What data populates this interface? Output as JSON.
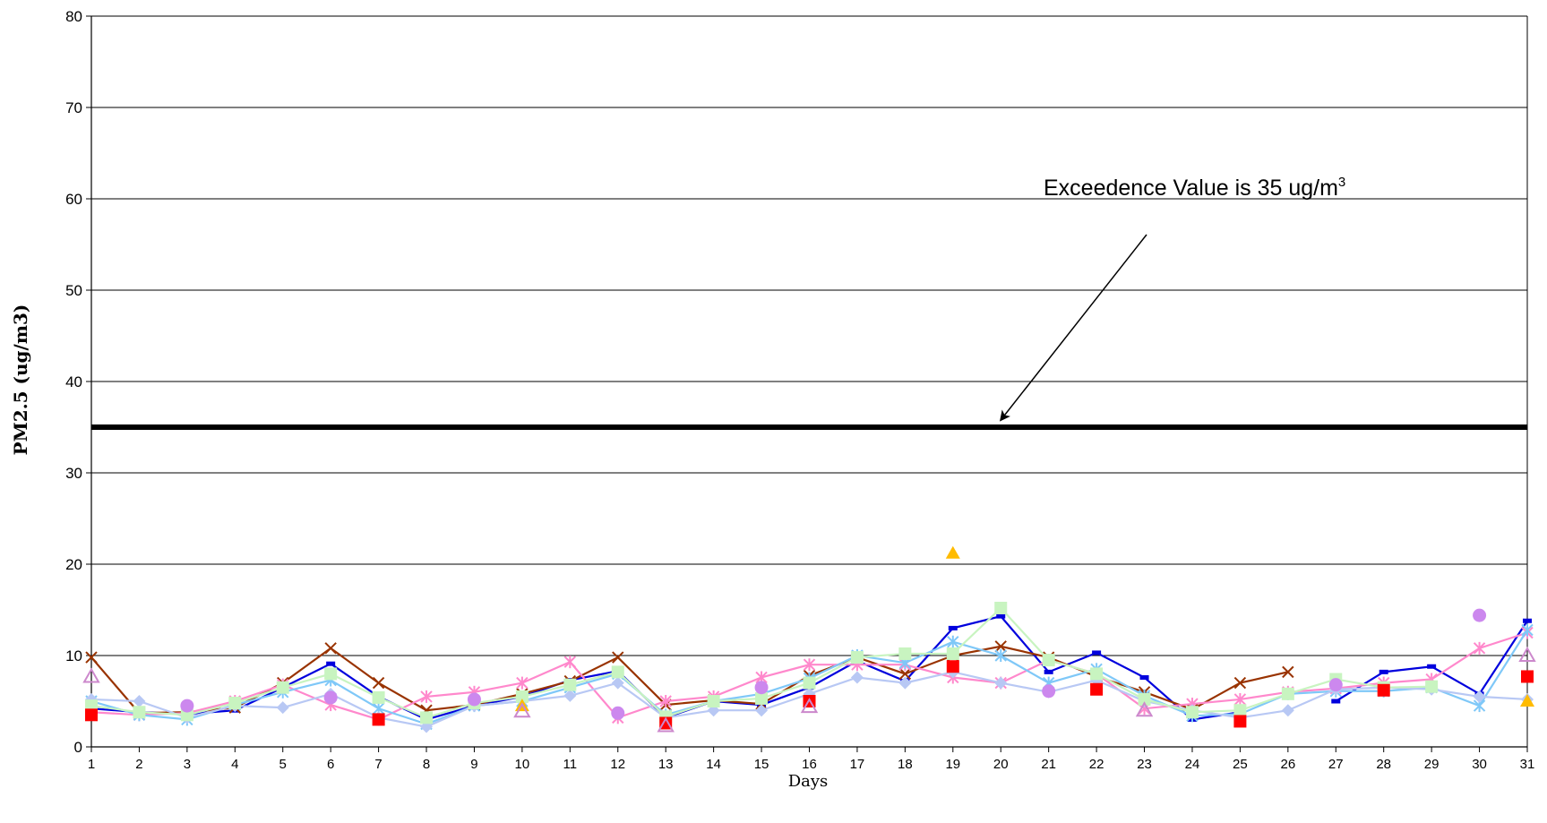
{
  "chart_data": {
    "type": "line",
    "title": "",
    "xlabel": "Days",
    "ylabel": "PM2.5 (ug/m3)",
    "xlim": [
      1,
      31
    ],
    "ylim": [
      0,
      80
    ],
    "yticks": [
      0,
      10,
      20,
      30,
      40,
      50,
      60,
      70,
      80
    ],
    "x": [
      1,
      2,
      3,
      4,
      5,
      6,
      7,
      8,
      9,
      10,
      11,
      12,
      13,
      14,
      15,
      16,
      17,
      18,
      19,
      20,
      21,
      22,
      23,
      24,
      25,
      26,
      27,
      28,
      29,
      30,
      31
    ],
    "grid": true,
    "legend": "none",
    "threshold": {
      "value": 35,
      "color": "#000000"
    },
    "annotation": {
      "text": "Exceedence Value is 35 ug/m",
      "superscript": "3",
      "points_to_x": 20,
      "points_to_y": 35
    },
    "series": [
      {
        "color": "#0000dd",
        "marker": "dash",
        "values": [
          4.2,
          3.8,
          3.6,
          4.0,
          6.5,
          9.1,
          5.5,
          3.0,
          4.5,
          5.5,
          7.3,
          8.3,
          3.2,
          5.0,
          4.6,
          6.5,
          9.4,
          7.2,
          13.0,
          14.3,
          8.2,
          10.3,
          7.6,
          3.0,
          3.8,
          null,
          5.0,
          8.2,
          8.8,
          5.8,
          13.8
        ]
      },
      {
        "color": "#993300",
        "marker": "x",
        "values": [
          9.8,
          3.7,
          3.8,
          4.3,
          7.0,
          10.8,
          7.0,
          4.0,
          4.6,
          5.8,
          7.2,
          9.8,
          4.6,
          5.1,
          4.7,
          7.8,
          9.8,
          8.0,
          10.0,
          11.0,
          9.8,
          7.7,
          6.0,
          4.1,
          7.0,
          8.2,
          null,
          null,
          null,
          null,
          null
        ]
      },
      {
        "color": "#ff88cc",
        "marker": "star",
        "values": [
          3.8,
          3.5,
          3.7,
          5.0,
          6.8,
          4.6,
          3.0,
          5.5,
          6.0,
          7.0,
          9.3,
          3.2,
          5.0,
          5.5,
          7.6,
          9.0,
          9.0,
          9.0,
          7.6,
          7.0,
          9.5,
          8.0,
          4.2,
          4.7,
          5.2,
          6.0,
          6.4,
          7.0,
          7.4,
          10.8,
          12.5
        ]
      },
      {
        "color": "#7fc8f8",
        "marker": "star",
        "values": [
          5.0,
          3.5,
          3.0,
          4.6,
          6.0,
          7.3,
          4.2,
          2.5,
          4.5,
          5.0,
          6.5,
          8.0,
          3.5,
          5.0,
          5.8,
          7.5,
          10.0,
          9.2,
          11.5,
          10.0,
          7.0,
          8.5,
          5.6,
          3.4,
          3.6,
          5.8,
          6.1,
          6.1,
          6.5,
          4.5,
          12.8
        ]
      },
      {
        "color": "#b8c8f4",
        "marker": "diamond",
        "values": [
          5.2,
          5.0,
          3.2,
          4.5,
          4.3,
          5.8,
          3.2,
          2.2,
          4.5,
          5.0,
          5.6,
          7.0,
          3.2,
          4.0,
          4.0,
          5.8,
          7.6,
          7.0,
          8.2,
          7.0,
          6.0,
          7.3,
          5.0,
          4.0,
          3.2,
          4.0,
          6.3,
          6.5,
          6.3,
          5.5,
          5.2
        ]
      },
      {
        "color": "#c8f4c0",
        "marker": "square",
        "values": [
          4.5,
          3.8,
          3.5,
          4.8,
          6.5,
          8.0,
          5.4,
          3.2,
          4.8,
          5.5,
          6.8,
          8.2,
          3.3,
          5.0,
          5.3,
          7.0,
          9.8,
          10.2,
          10.2,
          15.2,
          9.5,
          8.0,
          5.2,
          3.8,
          4.0,
          5.8,
          7.4,
          6.5,
          6.6,
          null,
          null
        ]
      },
      {
        "color": "#ff0000",
        "marker": "square-points",
        "values": [
          3.5,
          null,
          null,
          null,
          null,
          null,
          3.0,
          null,
          null,
          null,
          null,
          null,
          2.6,
          null,
          null,
          5.0,
          null,
          null,
          8.8,
          null,
          null,
          6.3,
          null,
          null,
          2.8,
          null,
          null,
          6.2,
          null,
          null,
          7.7
        ]
      },
      {
        "color": "#ffbb00",
        "marker": "triangle-points",
        "values": [
          null,
          null,
          null,
          null,
          null,
          null,
          null,
          null,
          null,
          4.5,
          null,
          null,
          null,
          null,
          null,
          null,
          null,
          null,
          21.2,
          null,
          null,
          null,
          null,
          null,
          null,
          null,
          null,
          null,
          null,
          null,
          5.0
        ]
      },
      {
        "color": "#cc88ee",
        "marker": "circle-points",
        "values": [
          null,
          null,
          4.5,
          null,
          null,
          5.4,
          null,
          null,
          5.2,
          null,
          null,
          3.7,
          null,
          null,
          6.5,
          null,
          null,
          null,
          null,
          null,
          6.1,
          null,
          null,
          null,
          null,
          null,
          6.8,
          null,
          null,
          14.4,
          null
        ]
      },
      {
        "color": "#cc88cc",
        "marker": "triangle-open-points",
        "values": [
          7.7,
          null,
          null,
          null,
          null,
          null,
          null,
          null,
          null,
          3.9,
          null,
          null,
          2.3,
          null,
          null,
          4.4,
          null,
          null,
          null,
          null,
          null,
          null,
          4.0,
          null,
          null,
          null,
          null,
          null,
          null,
          null,
          10.0
        ]
      }
    ]
  }
}
